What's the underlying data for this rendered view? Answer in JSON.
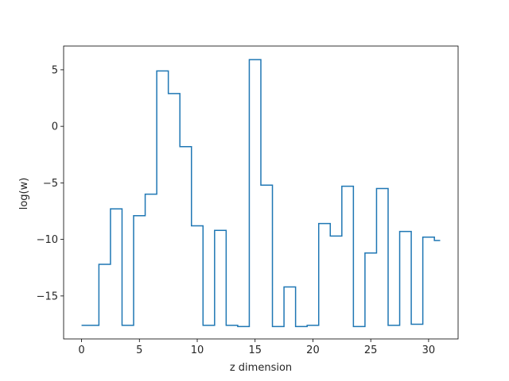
{
  "chart_data": {
    "type": "line",
    "drawstyle": "steps-mid",
    "title": "",
    "xlabel": "z dimension",
    "ylabel": "log(w)",
    "xlim": [
      -1.55,
      32.55
    ],
    "ylim": [
      -18.8,
      7.1
    ],
    "xticks": [
      0,
      5,
      10,
      15,
      20,
      25,
      30
    ],
    "yticks": [
      5,
      0,
      -5,
      -10,
      -15
    ],
    "ytick_labels": [
      "5",
      "0",
      "−5",
      "−10",
      "−15"
    ],
    "grid": false,
    "legend": "none",
    "line_color": "#1f77b4",
    "series": [
      {
        "x": [
          0,
          1,
          2,
          3,
          4,
          5,
          6,
          7,
          8,
          9,
          10,
          11,
          12,
          13,
          14,
          15,
          16,
          17,
          18,
          19,
          20,
          21,
          22,
          23,
          24,
          25,
          26,
          27,
          28,
          29,
          30,
          31
        ],
        "values": [
          -17.6,
          -17.6,
          -12.2,
          -7.3,
          -17.6,
          -7.9,
          -6.0,
          4.9,
          2.9,
          -1.8,
          -8.8,
          -17.6,
          -9.2,
          -17.6,
          -17.7,
          5.9,
          -5.2,
          -17.7,
          -14.2,
          -17.7,
          -17.6,
          -8.6,
          -9.7,
          -5.3,
          -17.7,
          -11.2,
          -5.5,
          -17.6,
          -9.3,
          -17.5,
          -9.8,
          -10.1
        ]
      }
    ]
  }
}
